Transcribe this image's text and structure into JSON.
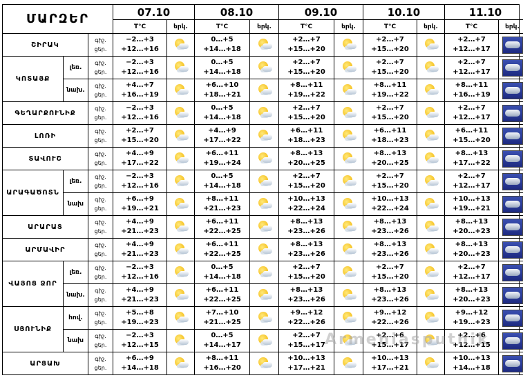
{
  "header": {
    "title": "ՄԱՐԶԵՐ",
    "dates": [
      "07.10",
      "08.10",
      "09.10",
      "10.10",
      "11.10"
    ],
    "temp_col": "T°C",
    "sky_col": "երկ."
  },
  "period_labels": {
    "night": "գիշ.",
    "day": "ցեր."
  },
  "icon_names": {
    "sun": "sun-cloud-icon",
    "storm": "rain-cloud-icon"
  },
  "rows": [
    {
      "region": "ՇԻՐԱԿ",
      "sub": "",
      "temps": [
        [
          "−2…+3",
          "+12…+16"
        ],
        [
          "0…+5",
          "+14…+18"
        ],
        [
          "+2…+7",
          "+15…+20"
        ],
        [
          "+2…+7",
          "+15…+20"
        ],
        [
          "+2…+7",
          "+12…+17"
        ]
      ],
      "icons": [
        "sun",
        "sun",
        "sun",
        "sun",
        "storm"
      ]
    },
    {
      "region": "ԿՈՏԱՅՔ",
      "sub": "լեռ.",
      "temps": [
        [
          "−2…+3",
          "+12…+16"
        ],
        [
          "0…+5",
          "+14…+18"
        ],
        [
          "+2…+7",
          "+15…+20"
        ],
        [
          "+2…+7",
          "+15…+20"
        ],
        [
          "+2…+7",
          "+12…+17"
        ]
      ],
      "icons": [
        "sun",
        "sun",
        "sun",
        "sun",
        "storm"
      ]
    },
    {
      "region": "",
      "sub": "նախ.",
      "temps": [
        [
          "+4…+7",
          "+16…+19"
        ],
        [
          "+6…+10",
          "+18…+21"
        ],
        [
          "+8…+11",
          "+19…+22"
        ],
        [
          "+8…+11",
          "+19…+22"
        ],
        [
          "+8…+11",
          "+16…+19"
        ]
      ],
      "icons": [
        "sun",
        "sun",
        "sun",
        "sun",
        "storm"
      ]
    },
    {
      "region": "ԳԵՂԱՐՔՈՒՆԻՔ",
      "sub": "",
      "temps": [
        [
          "−2…+3",
          "+12…+16"
        ],
        [
          "0…+5",
          "+14…+18"
        ],
        [
          "+2…+7",
          "+15…+20"
        ],
        [
          "+2…+7",
          "+15…+20"
        ],
        [
          "+2…+7",
          "+12…+17"
        ]
      ],
      "icons": [
        "sun",
        "sun",
        "sun",
        "sun",
        "storm"
      ]
    },
    {
      "region": "ԼՈՌԻ",
      "sub": "",
      "temps": [
        [
          "+2…+7",
          "+15…+20"
        ],
        [
          "+4…+9",
          "+17…+22"
        ],
        [
          "+6…+11",
          "+18…+23"
        ],
        [
          "+6…+11",
          "+18…+23"
        ],
        [
          "+6…+11",
          "+15…+20"
        ]
      ],
      "icons": [
        "sun",
        "sun",
        "sun",
        "sun",
        "storm"
      ]
    },
    {
      "region": "ՏԱՎՈՒՇ",
      "sub": "",
      "temps": [
        [
          "+4…+9",
          "+17…+22"
        ],
        [
          "+6…+11",
          "+19…+24"
        ],
        [
          "+8…+13",
          "+20…+25"
        ],
        [
          "+8…+13",
          "+20…+25"
        ],
        [
          "+8…+13",
          "+17…+22"
        ]
      ],
      "icons": [
        "sun",
        "sun",
        "sun",
        "sun",
        "storm"
      ]
    },
    {
      "region": "ԱՐԱԳԱԾՈՏՆ",
      "sub": "լեռ.",
      "temps": [
        [
          "−2…+3",
          "+12…+16"
        ],
        [
          "0…+5",
          "+14…+18"
        ],
        [
          "+2…+7",
          "+15…+20"
        ],
        [
          "+2…+7",
          "+15…+20"
        ],
        [
          "+2…+7",
          "+12…+17"
        ]
      ],
      "icons": [
        "sun",
        "sun",
        "sun",
        "sun",
        "storm"
      ]
    },
    {
      "region": "",
      "sub": "նախ",
      "temps": [
        [
          "+6…+9",
          "+19…+21"
        ],
        [
          "+8…+11",
          "+21…+23"
        ],
        [
          "+10…+13",
          "+22…+24"
        ],
        [
          "+10…+13",
          "+22…+24"
        ],
        [
          "+10…+13",
          "+19…+21"
        ]
      ],
      "icons": [
        "sun",
        "sun",
        "sun",
        "sun",
        "storm"
      ]
    },
    {
      "region": "ԱՐԱՐԱՏ",
      "sub": "",
      "temps": [
        [
          "+4…+9",
          "+21…+23"
        ],
        [
          "+6…+11",
          "+22…+25"
        ],
        [
          "+8…+13",
          "+23…+26"
        ],
        [
          "+8…+13",
          "+23…+26"
        ],
        [
          "+8…+13",
          "+20…+23"
        ]
      ],
      "icons": [
        "sun",
        "sun",
        "sun",
        "sun",
        "storm"
      ]
    },
    {
      "region": "ԱՐՄԱՎԻՐ",
      "sub": "",
      "temps": [
        [
          "+4…+9",
          "+21…+23"
        ],
        [
          "+6…+11",
          "+22…+25"
        ],
        [
          "+8…+13",
          "+23…+26"
        ],
        [
          "+8…+13",
          "+23…+26"
        ],
        [
          "+8…+13",
          "+20…+23"
        ]
      ],
      "icons": [
        "sun",
        "sun",
        "sun",
        "sun",
        "storm"
      ]
    },
    {
      "region": "ՎԱՅՈՑ ՁՈՐ",
      "sub": "լեռ.",
      "temps": [
        [
          "−2…+3",
          "+12…+16"
        ],
        [
          "0…+5",
          "+14…+18"
        ],
        [
          "+2…+7",
          "+15…+20"
        ],
        [
          "+2…+7",
          "+15…+20"
        ],
        [
          "+2…+7",
          "+12…+17"
        ]
      ],
      "icons": [
        "sun",
        "sun",
        "sun",
        "sun",
        "storm"
      ]
    },
    {
      "region": "",
      "sub": "նախ.",
      "temps": [
        [
          "+4…+9",
          "+21…+23"
        ],
        [
          "+6…+11",
          "+22…+25"
        ],
        [
          "+8…+13",
          "+23…+26"
        ],
        [
          "+8…+13",
          "+23…+26"
        ],
        [
          "+8…+13",
          "+20…+23"
        ]
      ],
      "icons": [
        "sun",
        "sun",
        "sun",
        "sun",
        "storm"
      ]
    },
    {
      "region": "ՍՅՈՒՆԻՔ",
      "sub": "հով.",
      "temps": [
        [
          "+5…+8",
          "+19…+23"
        ],
        [
          "+7…+10",
          "+21…+25"
        ],
        [
          "+9…+12",
          "+22…+26"
        ],
        [
          "+9…+12",
          "+22…+26"
        ],
        [
          "+9…+12",
          "+19…+23"
        ]
      ],
      "icons": [
        "sun",
        "sun",
        "sun",
        "sun",
        "storm"
      ]
    },
    {
      "region": "",
      "sub": "նախ",
      "temps": [
        [
          "−2…+3",
          "+12…+15"
        ],
        [
          "0…+5",
          "+14…+17"
        ],
        [
          "+2…+7",
          "+15…+17"
        ],
        [
          "+2…+6",
          "+15…+17"
        ],
        [
          "+2…+6",
          "+12…+15"
        ]
      ],
      "icons": [
        "sun",
        "sun",
        "sun",
        "sun",
        "storm"
      ]
    },
    {
      "region": "ԱՐՑԱԽ",
      "sub": "",
      "temps": [
        [
          "+6…+9",
          "+14…+18"
        ],
        [
          "+8…+11",
          "+16…+20"
        ],
        [
          "+10…+13",
          "+17…+21"
        ],
        [
          "+10…+13",
          "+17…+21"
        ],
        [
          "+10…+13",
          "+14…+18"
        ]
      ],
      "icons": [
        "sun",
        "sun",
        "sun",
        "sun",
        "storm"
      ]
    }
  ],
  "watermark": "Armeniasputnik"
}
